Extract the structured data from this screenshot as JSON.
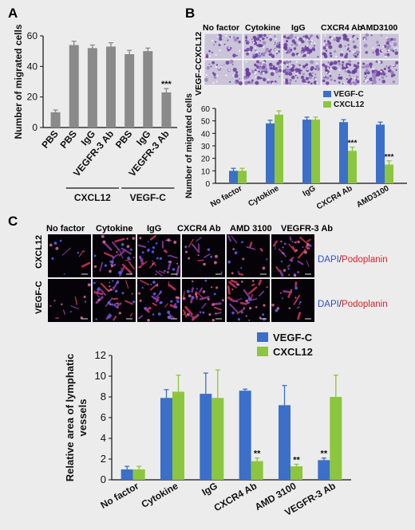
{
  "figure": {
    "background": "#ececec",
    "panel_labels": [
      "A",
      "B",
      "C"
    ]
  },
  "colors": {
    "gray_bar": "#8a8a8a",
    "vegfc_blue": "#3b6fc9",
    "cxcl12_green": "#8cc63e",
    "dapi_blue": "#2a4fd6",
    "podoplanin_red": "#e0202a"
  },
  "micro_B": {
    "col_labels": [
      "No factor",
      "Cytokine",
      "IgG",
      "CXCR4 Ab",
      "AMD3100"
    ],
    "row_labels": [
      "CXCL12",
      "VEGF-C"
    ]
  },
  "micro_C": {
    "col_labels": [
      "No factor",
      "Cytokine",
      "IgG",
      "CXCR4 Ab",
      "AMD 3100",
      "VEGFR-3 Ab"
    ],
    "row_labels": [
      "CXCL12",
      "VEGF-C"
    ],
    "stain_dapi": "DAPI",
    "stain_slash": "/",
    "stain_podoplanin": "Podoplanin"
  },
  "chart_data": [
    {
      "id": "A",
      "type": "bar",
      "ylabel": "Number of migrated cells",
      "ylim": [
        0,
        60
      ],
      "yticks": [
        0,
        20,
        40,
        60
      ],
      "categories": [
        "PBS",
        "PBS",
        "IgG",
        "VEGFR-3 Ab",
        "PBS",
        "IgG",
        "VEGFR-3 Ab"
      ],
      "series": [
        {
          "values": [
            10,
            54,
            52,
            53,
            48,
            50,
            23
          ],
          "errors": [
            1.5,
            2.5,
            2,
            2.5,
            2.5,
            2,
            2.5
          ]
        }
      ],
      "annotations": [
        {
          "index": 6,
          "text": "***"
        }
      ],
      "groups": [
        {
          "label": "CXCL12",
          "from": 1,
          "to": 3
        },
        {
          "label": "VEGF-C",
          "from": 4,
          "to": 6
        }
      ]
    },
    {
      "id": "B",
      "type": "bar",
      "ylabel": "Number of migrated cells",
      "ylim": [
        0,
        60
      ],
      "yticks": [
        0,
        10,
        20,
        30,
        40,
        50,
        60
      ],
      "categories": [
        "No factor",
        "Cytokine",
        "IgG",
        "CXCR4 Ab",
        "AMD3100"
      ],
      "series": [
        {
          "name": "VEGF-C",
          "values": [
            10,
            48,
            51,
            49,
            47
          ],
          "errors": [
            2,
            2.5,
            2,
            2,
            2
          ]
        },
        {
          "name": "CXCL12",
          "values": [
            10,
            55,
            51,
            26,
            15
          ],
          "errors": [
            2,
            3,
            2,
            3,
            3
          ]
        }
      ],
      "annotations": [
        {
          "series": 1,
          "index": 3,
          "text": "***"
        },
        {
          "series": 1,
          "index": 4,
          "text": "***"
        }
      ],
      "legend": "top-right",
      "grid": false
    },
    {
      "id": "C",
      "type": "bar",
      "ylabel": "Relative area of lymphatic vessels",
      "ylim": [
        0,
        12
      ],
      "yticks": [
        0,
        2,
        4,
        6,
        8,
        10,
        12
      ],
      "categories": [
        "No factor",
        "Cytokine",
        "IgG",
        "CXCR4 Ab",
        "AMD 3100",
        "VEGFR-3 Ab"
      ],
      "series": [
        {
          "name": "VEGF-C",
          "values": [
            1.0,
            7.9,
            8.3,
            8.6,
            7.2,
            1.9
          ],
          "errors": [
            0.3,
            0.8,
            2.0,
            0.15,
            1.9,
            0.2
          ]
        },
        {
          "name": "CXCL12",
          "values": [
            1.0,
            8.5,
            7.9,
            1.8,
            1.3,
            8.0
          ],
          "errors": [
            0.3,
            1.6,
            2.7,
            0.3,
            0.2,
            2.1
          ]
        }
      ],
      "annotations": [
        {
          "series": 1,
          "index": 3,
          "text": "**"
        },
        {
          "series": 1,
          "index": 4,
          "text": "**"
        },
        {
          "series": 0,
          "index": 5,
          "text": "**"
        }
      ],
      "legend": "top-right",
      "grid": false
    }
  ]
}
